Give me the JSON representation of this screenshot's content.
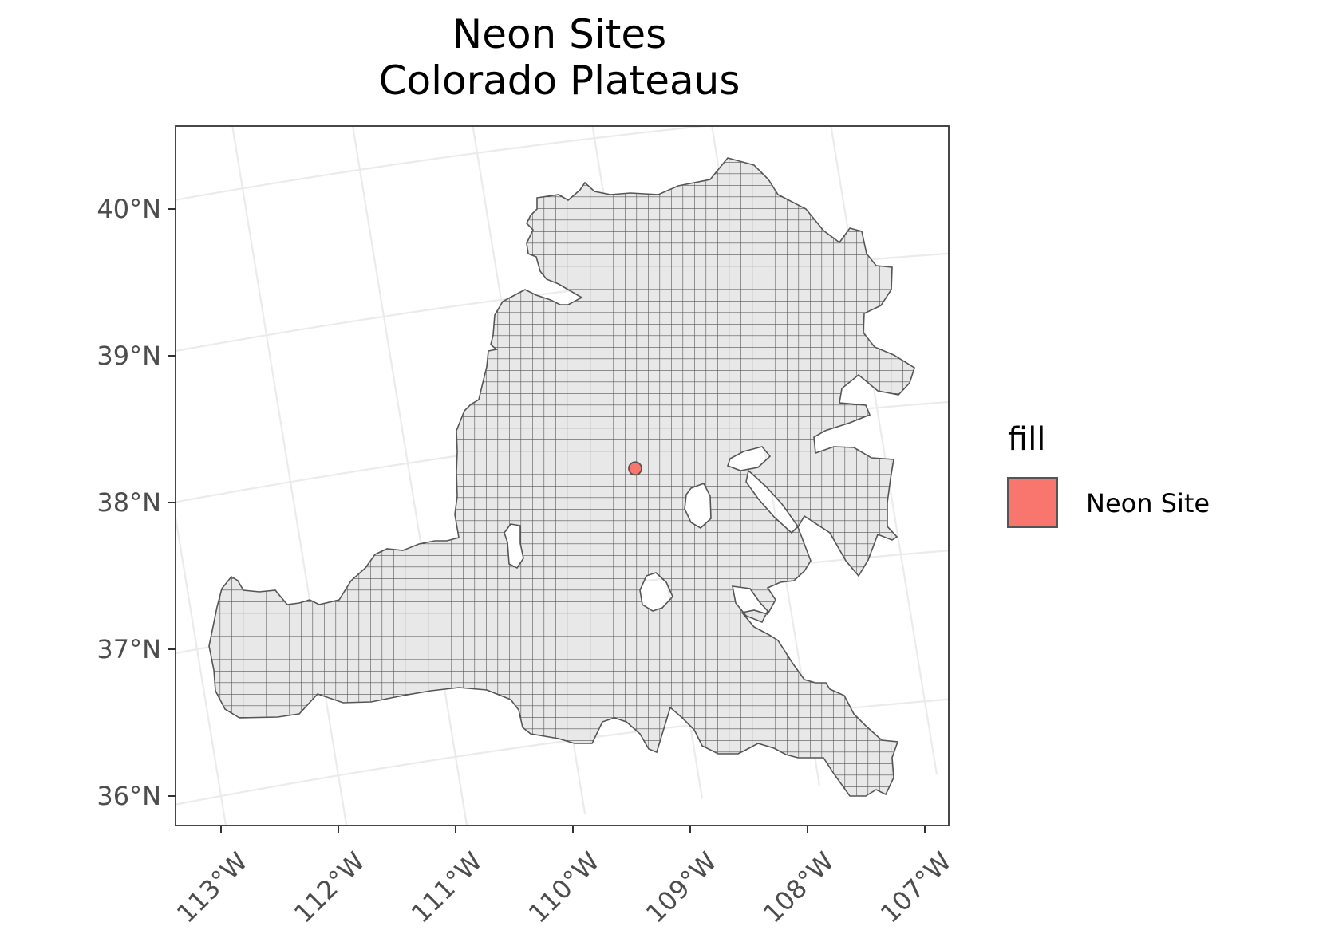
{
  "title_lines": [
    "Neon Sites",
    "Colorado Plateaus"
  ],
  "legend": {
    "title": "fill",
    "entries": [
      {
        "label": "Neon Site",
        "color": "#F8766D"
      }
    ]
  },
  "chart_data": {
    "type": "map",
    "title": "Neon Sites\nColorado Plateaus",
    "region": "Colorado Plateaus",
    "projection": "conic (graticule rotated)",
    "x_ticks": [
      "113°W",
      "112°W",
      "111°W",
      "110°W",
      "109°W",
      "108°W",
      "107°W"
    ],
    "y_ticks": [
      "36°N",
      "37°N",
      "38°N",
      "39°N",
      "40°N"
    ],
    "lon_range": [
      -113.4,
      -106.8
    ],
    "lat_range": [
      35.8,
      40.55
    ],
    "grid": true,
    "region_fill": "#E8E8E8",
    "region_outline": "#555555",
    "hex_grid_overlay": true,
    "points": [
      {
        "name": "Neon Site",
        "lon": -109.11,
        "lat": 37.76,
        "color": "#F8766D"
      }
    ],
    "legend_position": "right"
  }
}
